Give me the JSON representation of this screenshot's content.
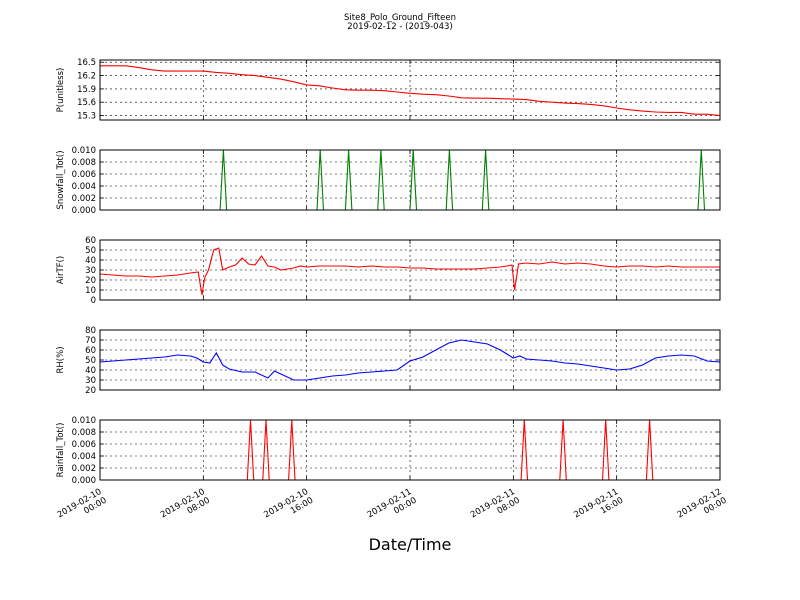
{
  "title": "Site8_Polo_Ground_Fifteen",
  "subtitle": "2019-02-12 - (2019-043)",
  "xlabel": "Date/Time",
  "x_ticks": [
    {
      "l1": "2019-02-10",
      "l2": "00:00",
      "t": 0
    },
    {
      "l1": "2019-02-10",
      "l2": "08:00",
      "t": 8
    },
    {
      "l1": "2019-02-10",
      "l2": "16:00",
      "t": 16
    },
    {
      "l1": "2019-02-11",
      "l2": "00:00",
      "t": 24
    },
    {
      "l1": "2019-02-11",
      "l2": "08:00",
      "t": 32
    },
    {
      "l1": "2019-02-11",
      "l2": "16:00",
      "t": 40
    },
    {
      "l1": "2019-02-12",
      "l2": "00:00",
      "t": 48
    }
  ],
  "chart_data": [
    {
      "type": "line",
      "ylabel": "P(unitless)",
      "color": "#ff0000",
      "ylim": [
        15.2,
        16.55
      ],
      "yticks": [
        15.3,
        15.6,
        15.9,
        16.2,
        16.5
      ],
      "ytick_labels": [
        "15.3",
        "15.6",
        "15.9",
        "16.2",
        "16.5"
      ],
      "grid": true,
      "x": [
        0,
        1,
        2,
        3,
        4,
        5,
        6,
        7,
        8,
        9,
        10,
        11,
        12,
        13,
        14,
        15,
        16,
        17,
        18,
        19,
        20,
        21,
        22,
        23,
        24,
        25,
        26,
        27,
        28,
        29,
        30,
        31,
        32,
        33,
        34,
        35,
        36,
        37,
        38,
        39,
        40,
        41,
        42,
        43,
        44,
        45,
        46,
        47,
        48
      ],
      "y": [
        16.42,
        16.42,
        16.42,
        16.38,
        16.33,
        16.3,
        16.3,
        16.3,
        16.3,
        16.27,
        16.25,
        16.22,
        16.2,
        16.16,
        16.12,
        16.06,
        15.99,
        15.97,
        15.92,
        15.88,
        15.87,
        15.87,
        15.86,
        15.83,
        15.8,
        15.78,
        15.77,
        15.74,
        15.7,
        15.69,
        15.69,
        15.68,
        15.67,
        15.66,
        15.62,
        15.6,
        15.58,
        15.57,
        15.55,
        15.52,
        15.47,
        15.43,
        15.4,
        15.38,
        15.37,
        15.37,
        15.33,
        15.33,
        15.3
      ]
    },
    {
      "type": "line",
      "ylabel": "Snowfall_Tot()",
      "color": "#008000",
      "ylim": [
        0,
        0.01
      ],
      "yticks": [
        0,
        0.002,
        0.004,
        0.006,
        0.008,
        0.01
      ],
      "ytick_labels": [
        "0.000",
        "0.002",
        "0.004",
        "0.006",
        "0.008",
        "0.010"
      ],
      "grid": true,
      "x": [
        0,
        9.3,
        9.55,
        9.8,
        16.8,
        17.05,
        17.3,
        19.0,
        19.25,
        19.5,
        21.5,
        21.75,
        22.0,
        24.0,
        24.25,
        24.5,
        26.8,
        27.05,
        27.3,
        29.6,
        29.85,
        30.1,
        46.3,
        46.55,
        46.8,
        48
      ],
      "y": [
        0,
        0,
        0.01,
        0,
        0,
        0.01,
        0,
        0,
        0.01,
        0,
        0,
        0.01,
        0,
        0,
        0.01,
        0,
        0,
        0.01,
        0,
        0,
        0.01,
        0,
        0,
        0.01,
        0,
        0
      ]
    },
    {
      "type": "line",
      "ylabel": "AirTF()",
      "color": "#ff0000",
      "ylim": [
        0,
        60
      ],
      "yticks": [
        0,
        10,
        20,
        30,
        40,
        50,
        60
      ],
      "ytick_labels": [
        "0",
        "10",
        "20",
        "30",
        "40",
        "50",
        "60"
      ],
      "grid": true,
      "x": [
        0,
        1,
        2,
        3,
        4,
        5,
        6,
        7,
        7.6,
        7.9,
        8.1,
        8.4,
        8.8,
        9.2,
        9.5,
        10,
        10.5,
        11,
        11.5,
        12,
        12.5,
        13,
        13.5,
        14,
        14.5,
        15,
        15.5,
        16,
        17,
        18,
        19,
        20,
        21,
        22,
        23,
        24,
        25,
        26,
        27,
        28,
        29,
        30,
        31,
        31.5,
        31.9,
        32.1,
        32.4,
        33,
        34,
        35,
        36,
        37,
        38,
        39,
        40,
        41,
        42,
        43,
        44,
        45,
        46,
        47,
        48
      ],
      "y": [
        26,
        25,
        24,
        24,
        23,
        24,
        25,
        27,
        28,
        5,
        22,
        30,
        50,
        52,
        30,
        33,
        35,
        42,
        36,
        35,
        44,
        34,
        33,
        30,
        31,
        32,
        34,
        33,
        34,
        34,
        34,
        33,
        34,
        33,
        33,
        32,
        32,
        31,
        31,
        31,
        31,
        32,
        33,
        34,
        35,
        10,
        36,
        37,
        36,
        38,
        36,
        37,
        36,
        34,
        33,
        34,
        34,
        33,
        34,
        33,
        33,
        33,
        33
      ]
    },
    {
      "type": "line",
      "ylabel": "RH(%)",
      "color": "#0000ff",
      "ylim": [
        20,
        80
      ],
      "yticks": [
        20,
        30,
        40,
        50,
        60,
        70,
        80
      ],
      "ytick_labels": [
        "20",
        "30",
        "40",
        "50",
        "60",
        "70",
        "80"
      ],
      "grid": true,
      "x": [
        0,
        1,
        2,
        3,
        4,
        5,
        6,
        7,
        7.5,
        8,
        8.5,
        9,
        9.5,
        10,
        11,
        12,
        13,
        13.5,
        14,
        15,
        16,
        17,
        18,
        19,
        20,
        21,
        22,
        23,
        24,
        25,
        26,
        27,
        28,
        29,
        30,
        31,
        32,
        32.5,
        33,
        34,
        35,
        36,
        37,
        38,
        39,
        40,
        41,
        42,
        43,
        44,
        45,
        46,
        47,
        48
      ],
      "y": [
        48,
        49,
        50,
        51,
        52,
        53,
        55,
        54,
        52,
        48,
        47,
        57,
        45,
        41,
        38,
        38,
        32,
        39,
        36,
        30,
        30,
        32,
        34,
        35,
        37,
        38,
        39,
        40,
        49,
        53,
        60,
        67,
        70,
        68,
        66,
        60,
        52,
        54,
        51,
        50,
        49,
        47,
        46,
        44,
        42,
        40,
        41,
        45,
        52,
        54,
        55,
        54,
        49,
        48
      ]
    },
    {
      "type": "line",
      "ylabel": "Rainfall_Tot()",
      "color": "#ff0000",
      "ylim": [
        0,
        0.01
      ],
      "yticks": [
        0,
        0.002,
        0.004,
        0.006,
        0.008,
        0.01
      ],
      "ytick_labels": [
        "0.000",
        "0.002",
        "0.004",
        "0.006",
        "0.008",
        "0.010"
      ],
      "grid": true,
      "x": [
        0,
        11.4,
        11.65,
        11.9,
        12.6,
        12.85,
        13.1,
        14.6,
        14.85,
        15.1,
        32.6,
        32.85,
        33.1,
        35.6,
        35.85,
        36.1,
        38.9,
        39.15,
        39.4,
        42.3,
        42.55,
        42.8,
        48
      ],
      "y": [
        0,
        0,
        0.01,
        0,
        0,
        0.01,
        0,
        0,
        0.01,
        0,
        0,
        0.01,
        0,
        0,
        0.01,
        0,
        0,
        0.01,
        0,
        0,
        0.01,
        0,
        0
      ]
    }
  ]
}
